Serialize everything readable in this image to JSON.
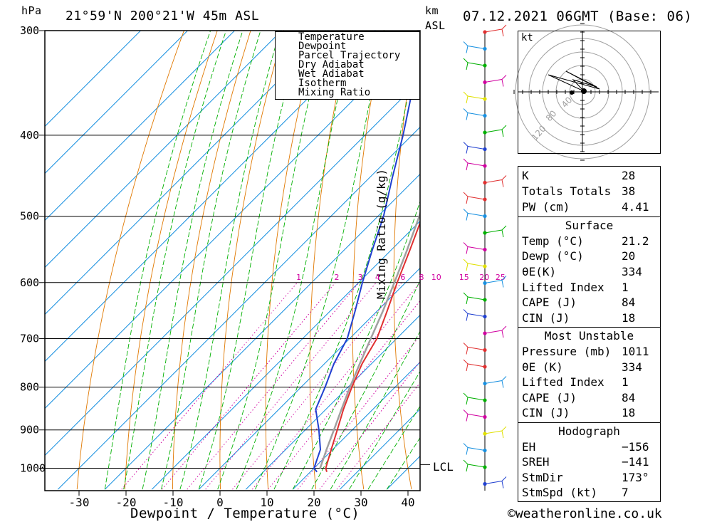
{
  "header": {
    "pressure_unit": "hPa",
    "location": "21°59'N  200°21'W  45m  ASL",
    "km_label": "km",
    "asl_label": "ASL",
    "datetime": "07.12.2021  06GMT  (Base: 06)"
  },
  "legend": {
    "items": [
      {
        "label": "Temperature",
        "color": "#e03030",
        "style": "solid"
      },
      {
        "label": "Dewpoint",
        "color": "#2040d0",
        "style": "solid"
      },
      {
        "label": "Parcel Trajectory",
        "color": "#a0a0a0",
        "style": "solid"
      },
      {
        "label": "Dry Adiabat",
        "color": "#e07800",
        "style": "solid"
      },
      {
        "label": "Wet Adiabat",
        "color": "#00b000",
        "style": "solid"
      },
      {
        "label": "Isotherm",
        "color": "#1890e0",
        "style": "solid"
      },
      {
        "label": "Mixing Ratio",
        "color": "#d000a0",
        "style": "dotted"
      }
    ]
  },
  "chart_data": {
    "type": "line",
    "xlabel": "Dewpoint / Temperature (°C)",
    "ylabel": "hPa",
    "right_axis_label": "Mixing Ratio (g/kg)",
    "x_ticks": [
      -30,
      -20,
      -10,
      0,
      10,
      20,
      30,
      40
    ],
    "pressure_levels": [
      300,
      400,
      500,
      600,
      700,
      800,
      900,
      1000
    ],
    "mixing_ratio_labels": [
      "1",
      "2",
      "3",
      "4",
      "6",
      "8",
      "10",
      "15",
      "20",
      "25"
    ],
    "lcl_label": "LCL",
    "series": [
      {
        "name": "Temperature",
        "points": [
          [
            1010,
            23.5
          ],
          [
            1000,
            22.5
          ],
          [
            950,
            19.7
          ],
          [
            900,
            16.8
          ],
          [
            850,
            13.7
          ],
          [
            800,
            10.8
          ],
          [
            750,
            8.0
          ],
          [
            700,
            5.8
          ],
          [
            650,
            2.2
          ],
          [
            600,
            -1.8
          ],
          [
            550,
            -5.9
          ],
          [
            500,
            -10.5
          ],
          [
            450,
            -16.4
          ],
          [
            400,
            -23.6
          ],
          [
            350,
            -32.6
          ],
          [
            300,
            -42.8
          ]
        ]
      },
      {
        "name": "Dewpoint",
        "points": [
          [
            1010,
            21.4
          ],
          [
            1000,
            20.0
          ],
          [
            950,
            17.4
          ],
          [
            900,
            12.9
          ],
          [
            850,
            7.8
          ],
          [
            800,
            5.1
          ],
          [
            750,
            2.0
          ],
          [
            700,
            -0.5
          ],
          [
            650,
            -4.6
          ],
          [
            600,
            -9.2
          ],
          [
            550,
            -13.9
          ],
          [
            500,
            -18.8
          ],
          [
            450,
            -25.1
          ],
          [
            400,
            -31.9
          ],
          [
            350,
            -40.1
          ],
          [
            300,
            -50.9
          ]
        ]
      },
      {
        "name": "Parcel Trajectory",
        "points": [
          [
            1000,
            21.3
          ],
          [
            950,
            18.7
          ],
          [
            900,
            16.1
          ],
          [
            850,
            13.3
          ],
          [
            800,
            10.4
          ],
          [
            750,
            7.5
          ],
          [
            700,
            4.5
          ],
          [
            650,
            1.3
          ],
          [
            600,
            -2.4
          ],
          [
            550,
            -6.5
          ],
          [
            500,
            -11.2
          ],
          [
            450,
            -16.9
          ],
          [
            400,
            -24.1
          ],
          [
            350,
            -33.0
          ],
          [
            300,
            -44.6
          ]
        ]
      }
    ]
  },
  "hodograph": {
    "unit": "kt",
    "ring_labels": [
      "40",
      "80",
      "120"
    ]
  },
  "indices": {
    "k_label": "K",
    "k": "28",
    "tt_label": "Totals Totals",
    "tt": "38",
    "pw_label": "PW (cm)",
    "pw": "4.41",
    "surface_title": "Surface",
    "temp_label": "Temp (°C)",
    "temp": "21.2",
    "dewp_label": "Dewp (°C)",
    "dewp": "20",
    "theta_label": "θE(K)",
    "theta": "334",
    "li_label": "Lifted Index",
    "li": "1",
    "cape_label": "CAPE (J)",
    "cape": "84",
    "cin_label": "CIN (J)",
    "cin": "18",
    "mu_title": "Most Unstable",
    "mu_pres_label": "Pressure (mb)",
    "mu_pres": "1011",
    "mu_theta_label": "θE (K)",
    "mu_theta": "334",
    "mu_li_label": "Lifted Index",
    "mu_li": "1",
    "mu_cape_label": "CAPE (J)",
    "mu_cape": "84",
    "mu_cin_label": "CIN (J)",
    "mu_cin": "18",
    "hodo_title": "Hodograph",
    "eh_label": "EH",
    "eh": "−156",
    "sreh_label": "SREH",
    "sreh": "−141",
    "stmdir_label": "StmDir",
    "stmdir": "173°",
    "stmspd_label": "StmSpd (kt)",
    "stmspd": "7"
  },
  "footer": {
    "copyright": "©weatheronline.co.uk"
  }
}
